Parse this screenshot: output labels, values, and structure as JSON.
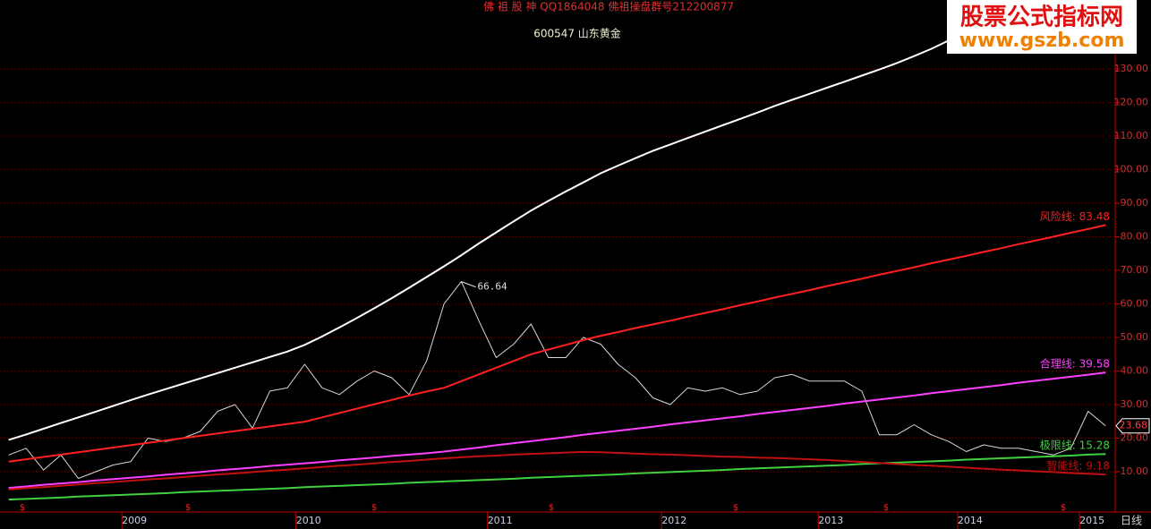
{
  "chart_data": {
    "type": "line",
    "title": "佛 祖 股 神   QQ1864048  佛祖操盘群号212200877",
    "subtitle": "600547 山东黄金",
    "watermark": [
      "股票公式指标网",
      "www.gszb.com"
    ],
    "period": "日线",
    "event_marker": "$",
    "categories": [
      null,
      null,
      null,
      null,
      null,
      null,
      null,
      "2009",
      null,
      null,
      null,
      null,
      null,
      null,
      null,
      null,
      null,
      "2010",
      null,
      null,
      null,
      null,
      null,
      null,
      null,
      null,
      null,
      null,
      "2011",
      null,
      null,
      null,
      null,
      null,
      null,
      null,
      null,
      null,
      "2012",
      null,
      null,
      null,
      null,
      null,
      null,
      null,
      null,
      "2013",
      null,
      null,
      null,
      null,
      null,
      null,
      null,
      "2014",
      null,
      null,
      null,
      null,
      null,
      null,
      "2015",
      null
    ],
    "ylim": [
      -2,
      146
    ],
    "yticks": [
      {
        "value": 10,
        "label": "10.00"
      },
      {
        "value": 20,
        "label": "20.00"
      },
      {
        "value": 30,
        "label": "30.00"
      },
      {
        "value": 40,
        "label": "40.00"
      },
      {
        "value": 50,
        "label": "50.00"
      },
      {
        "value": 60,
        "label": "60.00"
      },
      {
        "value": 70,
        "label": "70.00"
      },
      {
        "value": 80,
        "label": "80.00"
      },
      {
        "value": 90,
        "label": "90.00"
      },
      {
        "value": 100,
        "label": "100.00"
      },
      {
        "value": 110,
        "label": "110.00"
      },
      {
        "value": 120,
        "label": "120.00"
      },
      {
        "value": 130,
        "label": "130.00"
      }
    ],
    "grid": true,
    "series": [
      {
        "color": "#d8d8d8",
        "values": [
          15,
          17,
          10.5,
          15,
          8,
          10,
          12,
          13,
          20,
          19,
          20,
          22,
          28,
          30,
          23,
          34,
          35,
          42,
          35,
          33,
          37,
          40,
          38,
          33,
          43,
          60,
          66.64,
          55,
          44,
          48,
          54,
          44,
          44,
          50,
          48,
          42,
          38,
          32,
          30,
          35,
          34,
          35,
          33,
          34,
          38,
          39,
          37,
          37,
          37,
          34,
          21,
          21,
          24,
          21,
          19,
          16,
          18,
          17,
          17,
          16,
          15,
          17,
          28,
          23.68
        ]
      },
      {
        "color": "#ffffff",
        "values": [
          19.5,
          21.1,
          22.8,
          24.5,
          26.2,
          27.9,
          29.6,
          31.3,
          33,
          34.6,
          36.2,
          37.8,
          39.4,
          41,
          42.6,
          44.2,
          45.8,
          47.8,
          50.3,
          53,
          55.8,
          58.7,
          61.7,
          64.8,
          68,
          71.2,
          74.5,
          78,
          81.3,
          84.6,
          87.8,
          90.7,
          93.5,
          96.2,
          98.9,
          101.2,
          103.4,
          105.6,
          107.5,
          109.4,
          111.3,
          113.2,
          115.1,
          117,
          119,
          120.8,
          122.6,
          124.4,
          126.2,
          128,
          129.8,
          131.7,
          133.8,
          136,
          138.5,
          null,
          null,
          null,
          null,
          null,
          null,
          null,
          null,
          null
        ]
      },
      {
        "color": "#ff2020",
        "values": [
          13,
          13.7,
          14.4,
          15.1,
          15.8,
          16.5,
          17.2,
          17.9,
          18.6,
          19.3,
          20,
          20.7,
          21.4,
          22.1,
          22.8,
          23.5,
          24.2,
          24.9,
          26.2,
          27.5,
          28.8,
          30.1,
          31.4,
          32.7,
          33.9,
          35,
          37,
          39,
          41,
          43,
          45,
          46.4,
          47.8,
          49.2,
          50.5,
          51.6,
          52.8,
          53.9,
          55,
          56.2,
          57.3,
          58.4,
          59.6,
          60.7,
          61.9,
          63,
          64.1,
          65.3,
          66.4,
          67.5,
          68.7,
          69.8,
          70.9,
          72.1,
          73.2,
          74.3,
          75.5,
          76.6,
          77.8,
          78.9,
          80,
          81.2,
          82.3,
          83.48
        ],
        "value_labels": [
          null,
          null,
          null,
          null,
          null,
          null,
          null,
          null,
          null,
          null,
          null,
          null,
          null,
          null,
          null,
          null,
          null,
          null,
          null,
          null,
          null,
          null,
          null,
          null,
          null,
          null,
          null,
          null,
          null,
          null,
          null,
          null,
          null,
          null,
          null,
          null,
          null,
          null,
          null,
          null,
          null,
          null,
          null,
          null,
          null,
          null,
          null,
          null,
          null,
          null,
          null,
          null,
          null,
          null,
          null,
          null,
          null,
          null,
          null,
          null,
          null,
          null,
          null,
          "风险线: 83.48"
        ]
      },
      {
        "color": "#ff40ff",
        "values": [
          5.2,
          5.6,
          6.1,
          6.5,
          6.9,
          7.4,
          7.8,
          8.2,
          8.6,
          9.1,
          9.5,
          9.9,
          10.4,
          10.8,
          11.2,
          11.7,
          12.1,
          12.5,
          12.9,
          13.4,
          13.8,
          14.2,
          14.7,
          15.1,
          15.5,
          16,
          16.6,
          17.2,
          17.9,
          18.5,
          19.1,
          19.7,
          20.3,
          21,
          21.6,
          22.2,
          22.8,
          23.4,
          24.1,
          24.7,
          25.3,
          25.9,
          26.5,
          27.2,
          27.8,
          28.4,
          29,
          29.6,
          30.3,
          30.9,
          31.5,
          32.1,
          32.7,
          33.4,
          34,
          34.6,
          35.2,
          35.8,
          36.5,
          37.1,
          37.7,
          38.3,
          38.9,
          39.58
        ],
        "value_labels": [
          null,
          null,
          null,
          null,
          null,
          null,
          null,
          null,
          null,
          null,
          null,
          null,
          null,
          null,
          null,
          null,
          null,
          null,
          null,
          null,
          null,
          null,
          null,
          null,
          null,
          null,
          null,
          null,
          null,
          null,
          null,
          null,
          null,
          null,
          null,
          null,
          null,
          null,
          null,
          null,
          null,
          null,
          null,
          null,
          null,
          null,
          null,
          null,
          null,
          null,
          null,
          null,
          null,
          null,
          null,
          null,
          null,
          null,
          null,
          null,
          null,
          null,
          null,
          "合理线: 39.58"
        ]
      },
      {
        "color": "#40d040",
        "values": [
          1.7,
          1.9,
          2.1,
          2.3,
          2.6,
          2.8,
          3,
          3.2,
          3.4,
          3.6,
          3.9,
          4.1,
          4.3,
          4.5,
          4.7,
          4.9,
          5.1,
          5.4,
          5.6,
          5.8,
          6,
          6.2,
          6.4,
          6.7,
          6.9,
          7.1,
          7.3,
          7.5,
          7.7,
          7.9,
          8.2,
          8.4,
          8.6,
          8.8,
          9,
          9.2,
          9.5,
          9.7,
          9.9,
          10.1,
          10.3,
          10.5,
          10.8,
          11,
          11.2,
          11.4,
          11.6,
          11.8,
          12,
          12.3,
          12.5,
          12.7,
          12.9,
          13.1,
          13.3,
          13.6,
          13.8,
          14,
          14.2,
          14.4,
          14.6,
          14.8,
          15.1,
          15.28
        ],
        "value_labels": [
          null,
          null,
          null,
          null,
          null,
          null,
          null,
          null,
          null,
          null,
          null,
          null,
          null,
          null,
          null,
          null,
          null,
          null,
          null,
          null,
          null,
          null,
          null,
          null,
          null,
          null,
          null,
          null,
          null,
          null,
          null,
          null,
          null,
          null,
          null,
          null,
          null,
          null,
          null,
          null,
          null,
          null,
          null,
          null,
          null,
          null,
          null,
          null,
          null,
          null,
          null,
          null,
          null,
          null,
          null,
          null,
          null,
          null,
          null,
          null,
          null,
          null,
          null,
          "极限线: 15.28"
        ]
      },
      {
        "color": "#c01010",
        "values": [
          4.7,
          5.1,
          5.4,
          5.8,
          6.2,
          6.6,
          6.9,
          7.3,
          7.7,
          8,
          8.4,
          8.8,
          9.2,
          9.5,
          9.9,
          10.3,
          10.6,
          11,
          11.4,
          11.8,
          12.1,
          12.5,
          12.9,
          13.2,
          13.6,
          14,
          14.3,
          14.6,
          14.8,
          15.1,
          15.3,
          15.5,
          15.7,
          15.9,
          15.8,
          15.6,
          15.4,
          15.2,
          15.1,
          14.9,
          14.7,
          14.5,
          14.4,
          14.2,
          14.1,
          13.9,
          13.7,
          13.5,
          13.2,
          12.9,
          12.6,
          12.3,
          12,
          11.8,
          11.5,
          11.2,
          10.9,
          10.6,
          10.4,
          10.1,
          9.9,
          9.6,
          9.4,
          9.18
        ],
        "value_labels": [
          null,
          null,
          null,
          null,
          null,
          null,
          null,
          null,
          null,
          null,
          null,
          null,
          null,
          null,
          null,
          null,
          null,
          null,
          null,
          null,
          null,
          null,
          null,
          null,
          null,
          null,
          null,
          null,
          null,
          null,
          null,
          null,
          null,
          null,
          null,
          null,
          null,
          null,
          null,
          null,
          null,
          null,
          null,
          null,
          null,
          null,
          null,
          null,
          null,
          null,
          null,
          null,
          null,
          null,
          null,
          null,
          null,
          null,
          null,
          null,
          null,
          null,
          null,
          "智能线: 9.18"
        ]
      }
    ]
  }
}
